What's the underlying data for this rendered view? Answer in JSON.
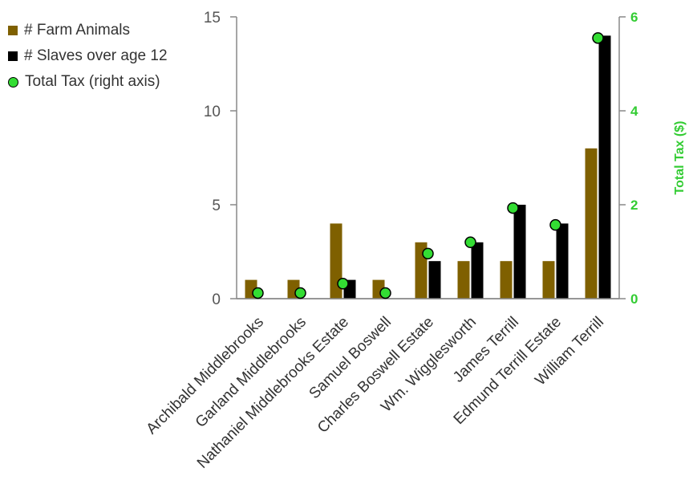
{
  "chart_data": {
    "type": "bar",
    "categories": [
      "Archibald Middlebrooks",
      "Garland Middlebrooks",
      "Nathaniel Middlebrooks Estate",
      "Samuel Boswell",
      "Charles Boswell Estate",
      "Wm. Wigglesworth",
      "James Terrill",
      "Edmund Terrill Estate",
      "William Terrill"
    ],
    "series": [
      {
        "name": "# Farm Animals",
        "type": "bar",
        "axis": "left",
        "color": "#7f6000",
        "values": [
          1,
          1,
          4,
          1,
          3,
          2,
          2,
          2,
          8
        ]
      },
      {
        "name": "# Slaves over age 12",
        "type": "bar",
        "axis": "left",
        "color": "#000000",
        "values": [
          0,
          0,
          1,
          0,
          2,
          3,
          5,
          4,
          14
        ]
      },
      {
        "name": "Total Tax (right axis)",
        "type": "scatter",
        "axis": "right",
        "color": "#33dd33",
        "values": [
          0.12,
          0.12,
          0.32,
          0.12,
          0.96,
          1.2,
          1.93,
          1.57,
          5.55
        ]
      }
    ],
    "ylim": [
      0,
      15
    ],
    "yticks": [
      "0",
      "5",
      "10",
      "15"
    ],
    "y2lim": [
      0,
      6
    ],
    "y2ticks": [
      "0",
      "2",
      "4",
      "6"
    ],
    "y2label": "Total Tax ($)",
    "y2color": "#33cc33",
    "legend_position": "top-left"
  }
}
